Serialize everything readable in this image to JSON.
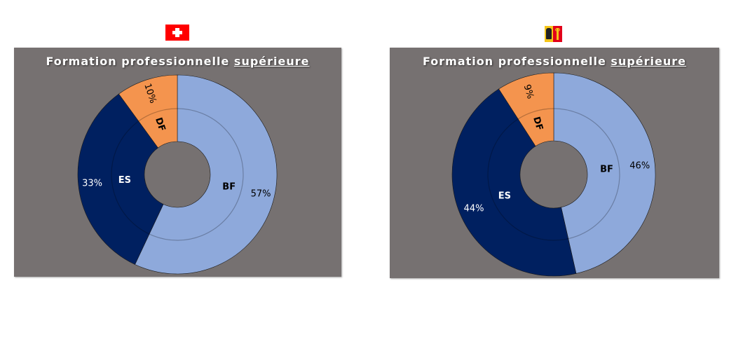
{
  "charts": [
    {
      "flag": "swiss-flag",
      "title_main": "Formation professionnelle",
      "title_underlined": "supérieure",
      "segments": [
        {
          "label": "BF",
          "pct_label": "57%",
          "value": 57,
          "color": "#8EA9DB"
        },
        {
          "label": "ES",
          "pct_label": "33%",
          "value": 33,
          "color": "#002060"
        },
        {
          "label": "DF",
          "pct_label": "10%",
          "value": 10,
          "color": "#F4944E"
        }
      ]
    },
    {
      "flag": "geneva-flag",
      "title_main": "Formation professionnelle",
      "title_underlined": "supérieure",
      "segments": [
        {
          "label": "BF",
          "pct_label": "46%",
          "value": 46,
          "color": "#8EA9DB"
        },
        {
          "label": "ES",
          "pct_label": "44%",
          "value": 44,
          "color": "#002060"
        },
        {
          "label": "DF",
          "pct_label": "9%",
          "value": 9,
          "color": "#F4944E"
        }
      ]
    }
  ],
  "chart_data": [
    {
      "type": "pie",
      "title": "Formation professionnelle supérieure (Suisse)",
      "categories": [
        "BF",
        "ES",
        "DF"
      ],
      "values": [
        57,
        33,
        10
      ],
      "unit": "%"
    },
    {
      "type": "pie",
      "title": "Formation professionnelle supérieure (Genève)",
      "categories": [
        "BF",
        "ES",
        "DF"
      ],
      "values": [
        46,
        44,
        9
      ],
      "unit": "%"
    }
  ]
}
